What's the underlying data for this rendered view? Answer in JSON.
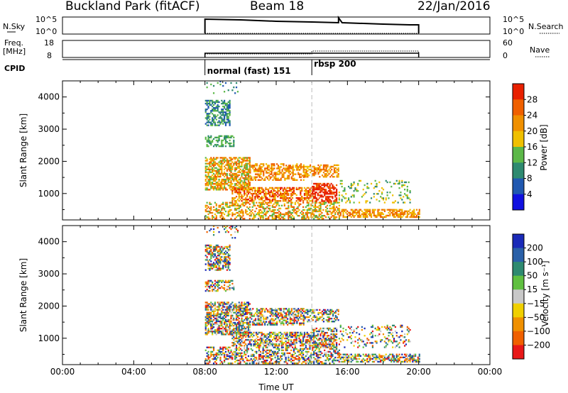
{
  "header": {
    "station": "Buckland Park (fitACF)",
    "beam": "Beam 18",
    "date": "22/Jan/2016"
  },
  "top_panels": {
    "nsky_label": "N.Sky",
    "nsky_ticks": [
      "10^5",
      "10^0"
    ],
    "nsky_right_ticks": [
      "10^5",
      "10^0"
    ],
    "nsearch_label": "N.Search",
    "freq_label_line1": "Freq.",
    "freq_label_line2": "[MHz]",
    "freq_ticks": [
      "18",
      "8"
    ],
    "nave_ticks": [
      "60",
      "0"
    ],
    "nave_label": "Nave",
    "cpid_label": "CPID",
    "cpid_modes": [
      {
        "label": "normal (fast) 151",
        "start_hour": 8
      },
      {
        "label": "rbsp 200",
        "start_hour": 14
      }
    ]
  },
  "chart_data": [
    {
      "type": "heatmap",
      "name": "power",
      "ylabel": "Slant Range [km]",
      "xlabel": "",
      "xlim_hours": [
        0,
        24
      ],
      "ylim_km": [
        180,
        4500
      ],
      "yticks": [
        "1000",
        "2000",
        "3000",
        "4000"
      ],
      "yticks_values": [
        1000,
        2000,
        3000,
        4000
      ],
      "colorbar_label": "Power [dB]",
      "colorbar_ticks": [
        "4",
        "8",
        "12",
        "16",
        "20",
        "24",
        "28"
      ],
      "colorbar_colors": [
        "#1010e0",
        "#2058b0",
        "#2e8a70",
        "#5cb848",
        "#f0c000",
        "#f09000",
        "#f06000",
        "#e82000"
      ],
      "data_start_hour": 8,
      "data_end_hour": 20,
      "mode_change_hour": 14
    },
    {
      "type": "heatmap",
      "name": "velocity",
      "ylabel": "Slant Range [km]",
      "xlabel": "Time UT",
      "xlim_hours": [
        0,
        24
      ],
      "ylim_km": [
        180,
        4500
      ],
      "yticks": [
        "1000",
        "2000",
        "3000",
        "4000"
      ],
      "yticks_values": [
        1000,
        2000,
        3000,
        4000
      ],
      "xticks": [
        "00:00",
        "04:00",
        "08:00",
        "12:00",
        "16:00",
        "20:00",
        "00:00"
      ],
      "colorbar_label": "Velocity [m s⁻¹]",
      "colorbar_ticks": [
        "200",
        "100",
        "50",
        "15",
        "−15",
        "−50",
        "−100",
        "−200"
      ],
      "colorbar_colors": [
        "#1a2ab8",
        "#2a60a8",
        "#2e8a70",
        "#60c040",
        "#c8c8c8",
        "#f0d000",
        "#f09000",
        "#f06000",
        "#e81818"
      ],
      "data_start_hour": 8,
      "data_end_hour": 20,
      "mode_change_hour": 14
    }
  ]
}
